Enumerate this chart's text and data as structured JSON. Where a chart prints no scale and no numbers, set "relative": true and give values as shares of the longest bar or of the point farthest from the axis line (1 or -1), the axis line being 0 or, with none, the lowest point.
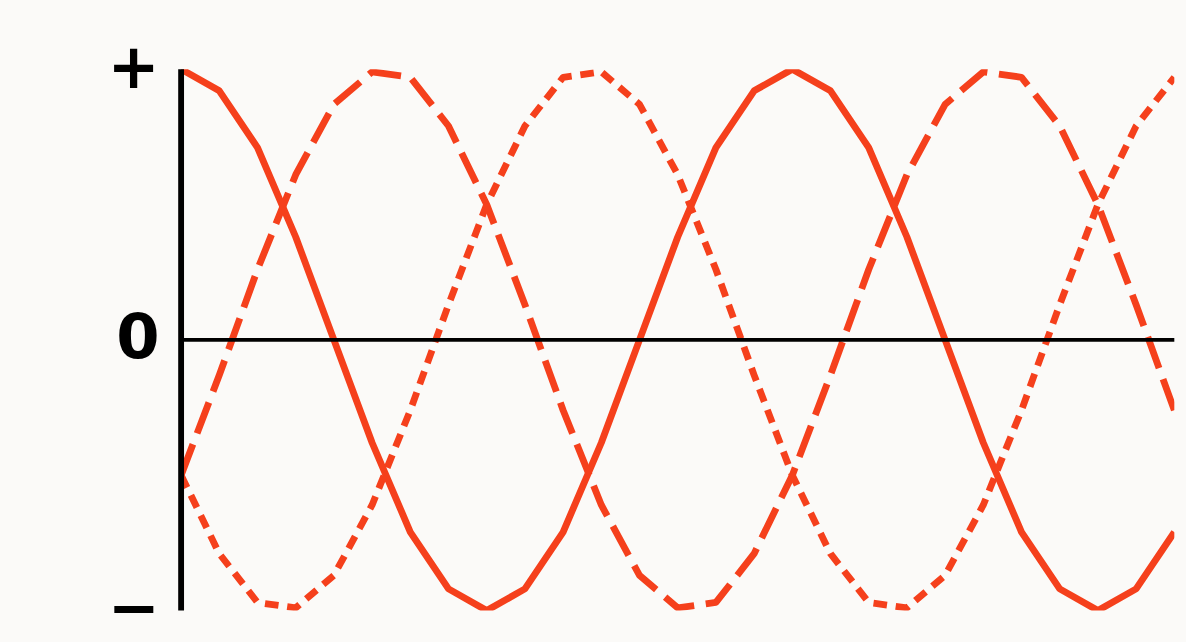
{
  "chart_data": {
    "type": "line",
    "relative": true,
    "categories": [
      null,
      null,
      null,
      null,
      null,
      null,
      null,
      null,
      null,
      null,
      null,
      null,
      null,
      null,
      null,
      null,
      null,
      null,
      null,
      null,
      null,
      null,
      null,
      null,
      null,
      null,
      null
    ],
    "series": [
      {
        "color": "#f5401c",
        "line_style": "solid",
        "values": [
          1,
          0.92,
          0.71,
          0.38,
          0,
          -0.38,
          -0.71,
          -0.92,
          -1,
          -0.92,
          -0.71,
          -0.38,
          0,
          0.38,
          0.71,
          0.92,
          1,
          0.92,
          0.71,
          0.38,
          0,
          -0.38,
          -0.71,
          -0.92,
          -1,
          -0.92,
          -0.71
        ]
      },
      {
        "color": "#f5401c",
        "line_style": "dashed",
        "values": [
          -0.5,
          -0.13,
          0.26,
          0.61,
          0.87,
          0.99,
          0.97,
          0.79,
          0.5,
          0.13,
          -0.26,
          -0.61,
          -0.87,
          -0.99,
          -0.97,
          -0.79,
          -0.5,
          -0.13,
          0.26,
          0.61,
          0.87,
          0.99,
          0.97,
          0.79,
          0.5,
          0.13,
          -0.26
        ]
      },
      {
        "color": "#f5401c",
        "line_style": "dotted",
        "values": [
          -0.5,
          -0.79,
          -0.97,
          -0.99,
          -0.87,
          -0.61,
          -0.26,
          0.13,
          0.5,
          0.79,
          0.97,
          0.99,
          0.87,
          0.61,
          0.26,
          -0.13,
          -0.5,
          -0.79,
          -0.97,
          -0.99,
          -0.87,
          -0.61,
          -0.26,
          0.13,
          0.5,
          0.79,
          0.97
        ]
      }
    ],
    "annotations": [
      "+",
      "0",
      "−"
    ]
  }
}
